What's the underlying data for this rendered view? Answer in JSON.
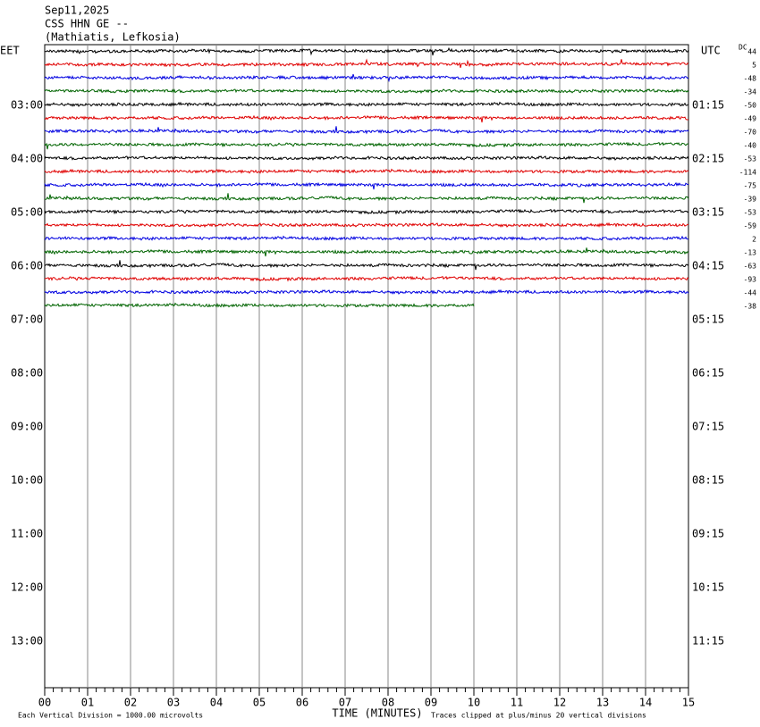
{
  "header": {
    "date": "Sep11,2025",
    "station": "CSS HHN GE --",
    "location": "(Mathiatis, Lefkosia)"
  },
  "left_axis": {
    "label": "EET",
    "hours": [
      "03:00",
      "04:00",
      "05:00",
      "06:00",
      "07:00",
      "08:00",
      "09:00",
      "10:00",
      "11:00",
      "12:00",
      "13:00"
    ]
  },
  "right_axis": {
    "label": "UTC",
    "hours": [
      "01:15",
      "02:15",
      "03:15",
      "04:15",
      "05:15",
      "06:15",
      "07:15",
      "08:15",
      "09:15",
      "10:15",
      "11:15"
    ]
  },
  "dc": {
    "label": "DC",
    "offsets": [
      "44",
      "5",
      "-48",
      "-34",
      "-50",
      "-49",
      "-70",
      "-40",
      "-53",
      "-114",
      "-75",
      "-39",
      "-53",
      "-59",
      "2",
      "-13",
      "-63",
      "-93",
      "-44",
      "-38"
    ]
  },
  "trace_colors": [
    "#000000",
    "#e00000",
    "#0000e0",
    "#006400"
  ],
  "x_axis": {
    "label": "TIME (MINUTES)",
    "ticks": [
      "00",
      "01",
      "02",
      "03",
      "04",
      "05",
      "06",
      "07",
      "08",
      "09",
      "10",
      "11",
      "12",
      "13",
      "14",
      "15"
    ]
  },
  "footer": {
    "scale": "Each Vertical Division = 1000.00 microvolts",
    "clip": "Traces clipped at plus/minus 20 vertical divisions"
  }
}
